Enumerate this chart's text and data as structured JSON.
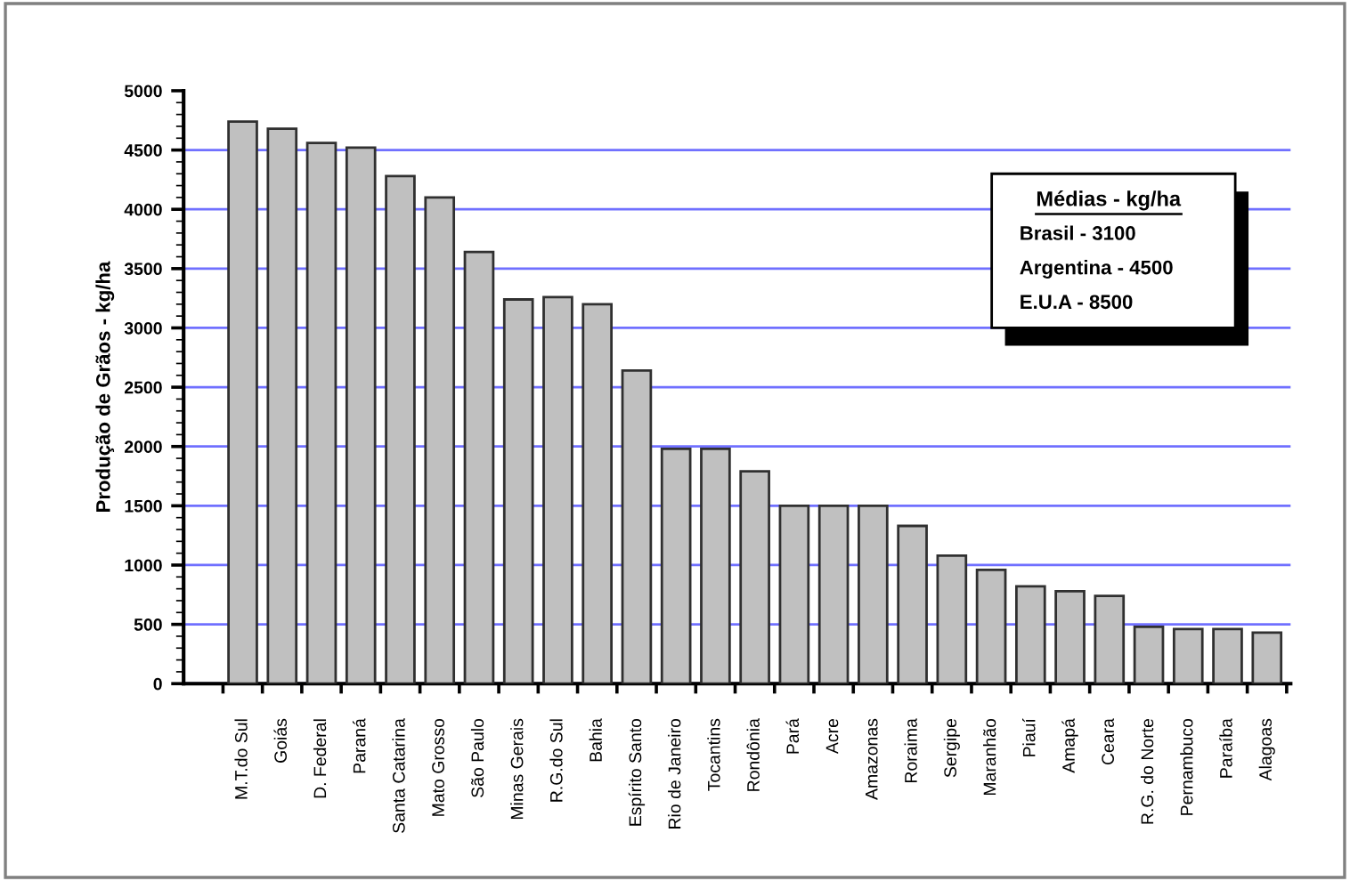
{
  "chart_data": {
    "type": "bar",
    "ylabel": "Produção de Grãos - kg/ha",
    "categories": [
      "M.T.do Sul",
      "Goiás",
      "D. Federal",
      "Paraná",
      "Santa Catarina",
      "Mato Grosso",
      "São Paulo",
      "Minas Gerais",
      "R.G.do Sul",
      "Bahia",
      "Espírito Santo",
      "Rio de Janeiro",
      "Tocantins",
      "Rondônia",
      "Pará",
      "Acre",
      "Amazonas",
      "Roraima",
      "Sergipe",
      "Maranhão",
      "Piauí",
      "Amapá",
      "Ceara",
      "R.G. do Norte",
      "Pernambuco",
      "Paraíba",
      "Alagoas"
    ],
    "values": [
      4740,
      4680,
      4560,
      4520,
      4280,
      4100,
      3640,
      3240,
      3260,
      3200,
      2640,
      1980,
      1980,
      1790,
      1500,
      1500,
      1500,
      1330,
      1080,
      960,
      820,
      780,
      740,
      480,
      460,
      460,
      430
    ],
    "color": "#c0c0c0",
    "ylim": [
      0,
      5000
    ],
    "yticks": [
      0,
      500,
      1000,
      1500,
      2000,
      2500,
      3000,
      3500,
      4000,
      4500,
      5000
    ],
    "grid": "y",
    "annotations": [
      "Médias - kg/ha",
      "Brasil - 3100",
      "Argentina - 4500",
      "E.U.A - 8500"
    ]
  }
}
